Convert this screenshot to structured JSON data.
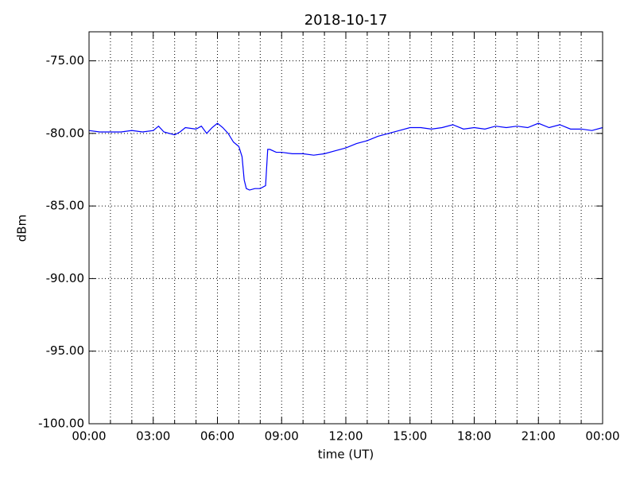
{
  "chart_data": {
    "type": "line",
    "title": "2018-10-17",
    "xlabel": "time (UT)",
    "ylabel": "dBm",
    "x": [
      0,
      0.5,
      1,
      1.5,
      2,
      2.5,
      3,
      3.25,
      3.5,
      4,
      4.25,
      4.5,
      5,
      5.25,
      5.5,
      5.75,
      6,
      6.25,
      6.5,
      6.75,
      7,
      7.15,
      7.25,
      7.35,
      7.5,
      7.75,
      8,
      8.25,
      8.35,
      8.45,
      8.75,
      9,
      9.5,
      10,
      10.5,
      11,
      11.5,
      12,
      12.5,
      13,
      13.5,
      14,
      14.5,
      15,
      15.5,
      16,
      16.5,
      17,
      17.5,
      18,
      18.5,
      19,
      19.5,
      20,
      20.5,
      21,
      21.5,
      22,
      22.5,
      23,
      23.5,
      24
    ],
    "series": [
      {
        "color": "#0000ff",
        "values": [
          -79.8,
          -79.9,
          -79.9,
          -79.9,
          -79.8,
          -79.9,
          -79.8,
          -79.5,
          -79.9,
          -80.1,
          -79.9,
          -79.6,
          -79.7,
          -79.5,
          -80.0,
          -79.6,
          -79.3,
          -79.6,
          -80.0,
          -80.6,
          -80.9,
          -81.6,
          -83.2,
          -83.8,
          -83.9,
          -83.8,
          -83.8,
          -83.6,
          -81.1,
          -81.1,
          -81.3,
          -81.3,
          -81.4,
          -81.4,
          -81.5,
          -81.4,
          -81.2,
          -81.0,
          -80.7,
          -80.5,
          -80.2,
          -80.0,
          -79.8,
          -79.6,
          -79.6,
          -79.7,
          -79.6,
          -79.4,
          -79.7,
          -79.6,
          -79.7,
          -79.5,
          -79.6,
          -79.5,
          -79.6,
          -79.3,
          -79.6,
          -79.4,
          -79.7,
          -79.7,
          -79.8,
          -79.6
        ]
      }
    ],
    "xlim": [
      0,
      24
    ],
    "xticks": [
      {
        "value": 0,
        "label": "00:00"
      },
      {
        "value": 3,
        "label": "03:00"
      },
      {
        "value": 6,
        "label": "06:00"
      },
      {
        "value": 9,
        "label": "09:00"
      },
      {
        "value": 12,
        "label": "12:00"
      },
      {
        "value": 15,
        "label": "15:00"
      },
      {
        "value": 18,
        "label": "18:00"
      },
      {
        "value": 21,
        "label": "21:00"
      },
      {
        "value": 24,
        "label": "00:00"
      }
    ],
    "xminorticks": [
      1,
      2,
      4,
      5,
      7,
      8,
      10,
      11,
      13,
      14,
      16,
      17,
      19,
      20,
      22,
      23
    ],
    "ylim": [
      -100,
      -73
    ],
    "yticks": [
      {
        "value": -100,
        "label": "-100.00"
      },
      {
        "value": -95,
        "label": "-95.00"
      },
      {
        "value": -90,
        "label": "-90.00"
      },
      {
        "value": -85,
        "label": "-85.00"
      },
      {
        "value": -80,
        "label": "-80.00"
      },
      {
        "value": -75,
        "label": "-75.00"
      }
    ],
    "grid": true
  }
}
